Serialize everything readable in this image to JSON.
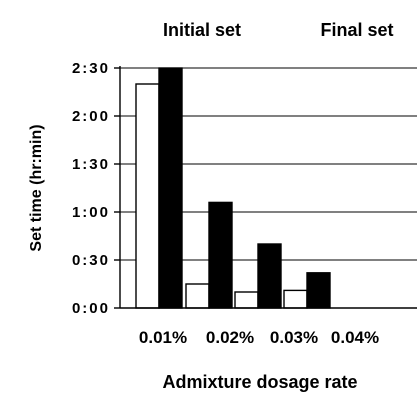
{
  "chart_data": {
    "type": "bar",
    "title": "",
    "xlabel": "Admixture dosage rate",
    "ylabel": "Set time (hr:min)",
    "categories": [
      "0.01%",
      "0.02%",
      "0.03%",
      "0.04%"
    ],
    "series": [
      {
        "name": "Initial set",
        "color": "#ffffff",
        "values_minutes": [
          140,
          15,
          10,
          11
        ]
      },
      {
        "name": "Final set",
        "color": "#000000",
        "values_minutes": [
          150,
          66,
          40,
          22
        ]
      }
    ],
    "y_ticks": [
      {
        "label": "0:00",
        "value_minutes": 0
      },
      {
        "label": "0:30",
        "value_minutes": 30
      },
      {
        "label": "1:00",
        "value_minutes": 60
      },
      {
        "label": "1:30",
        "value_minutes": 90
      },
      {
        "label": "2:00",
        "value_minutes": 120
      },
      {
        "label": "2:30",
        "value_minutes": 150
      }
    ],
    "ylim_minutes": [
      0,
      165
    ],
    "grid": true,
    "legend_position": "top"
  }
}
